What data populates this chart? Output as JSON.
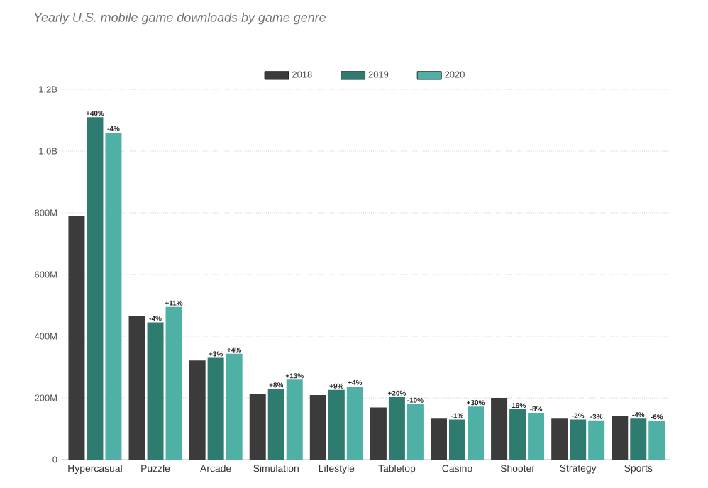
{
  "chart_data": {
    "type": "bar",
    "title": "Yearly U.S. mobile game downloads by game genre",
    "categories": [
      "Hypercasual",
      "Puzzle",
      "Arcade",
      "Simulation",
      "Lifestyle",
      "Tabletop",
      "Casino",
      "Shooter",
      "Strategy",
      "Sports"
    ],
    "series": [
      {
        "name": "2018",
        "color": "#3b3b3b",
        "values": [
          790000000,
          465000000,
          321000000,
          212000000,
          209000000,
          169000000,
          133000000,
          200000000,
          133000000,
          140000000
        ]
      },
      {
        "name": "2019",
        "color": "#2e7b70",
        "values": [
          1110000000,
          445000000,
          330000000,
          229000000,
          226000000,
          203000000,
          130000000,
          163000000,
          130000000,
          133000000
        ]
      },
      {
        "name": "2020",
        "color": "#4fb0a5",
        "values": [
          1060000000,
          495000000,
          343000000,
          259000000,
          237000000,
          180000000,
          172000000,
          152000000,
          127000000,
          126000000
        ]
      }
    ],
    "annotations": [
      "+40%",
      "-4%",
      "+3%",
      "+8%",
      "+9%",
      "+20%",
      "-1%",
      "-19%",
      "-2%",
      "-4%",
      "-4%",
      "+11%",
      "+4%",
      "+13%",
      "+4%",
      "-10%",
      "+30%",
      "-8%",
      "-3%",
      "-6%"
    ],
    "ylim": [
      0,
      1200000000
    ],
    "yticks": [
      0,
      {
        "value": 200000000,
        "label": "200M"
      },
      {
        "value": 400000000,
        "label": "400M"
      },
      {
        "value": 600000000,
        "label": "600M"
      },
      {
        "value": 800000000,
        "label": "800M"
      },
      {
        "value": 1000000000,
        "label": "1.0B"
      },
      {
        "value": 1200000000,
        "label": "1.2B"
      }
    ],
    "grid": "y",
    "legend": "top"
  }
}
